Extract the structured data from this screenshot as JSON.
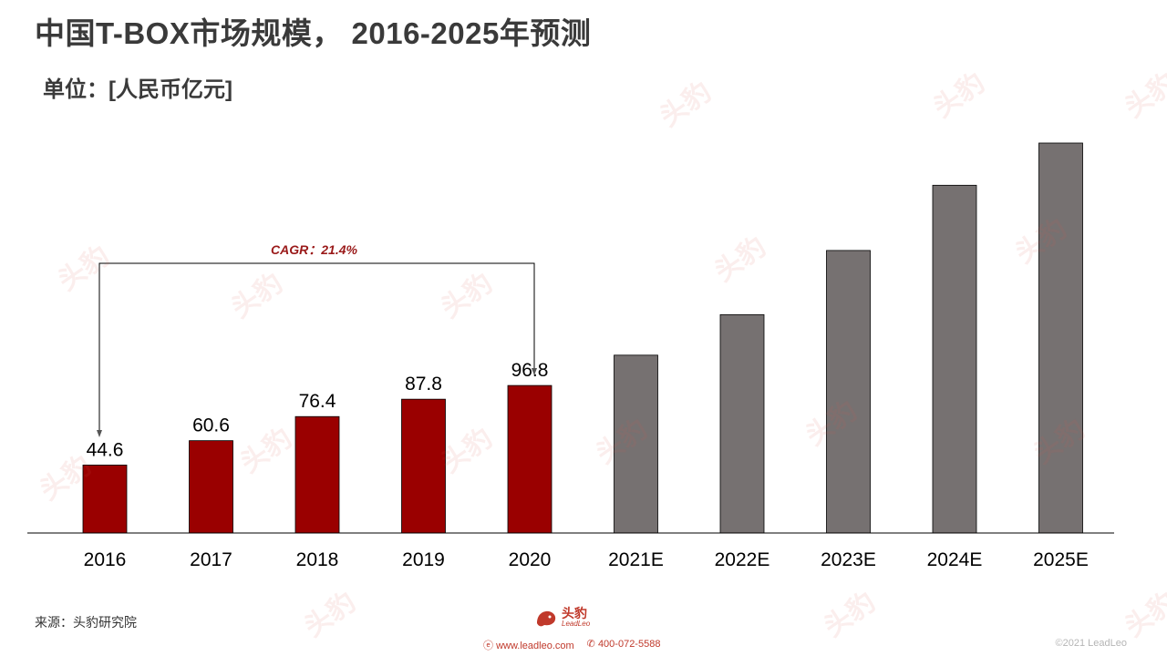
{
  "title": "中国T-BOX市场规模， 2016-2025年预测",
  "unit": "单位：[人民币亿元]",
  "source": "来源：头豹研究院",
  "brand": {
    "name": "头豹",
    "sub": "LeadLeo",
    "website": "www.leadleo.com",
    "phone": "400-072-5588",
    "copyright": "©2021 LeadLeo"
  },
  "watermark": "头豹",
  "colors": {
    "actual": "#9a0000",
    "forecast": "#767171",
    "annotation": "#9a1a1a",
    "text": "#000000"
  },
  "chart_data": {
    "type": "bar",
    "categories": [
      "2016",
      "2017",
      "2018",
      "2019",
      "2020",
      "2021E",
      "2022E",
      "2023E",
      "2024E",
      "2025E"
    ],
    "values": [
      44.6,
      60.6,
      76.4,
      87.8,
      96.8,
      116.7,
      143.3,
      185.4,
      228.2,
      255.9
    ],
    "labels": [
      "44.6",
      "60.6",
      "76.4",
      "87.8",
      "96.8",
      "",
      "",
      "",
      "",
      ""
    ],
    "forecast_from_index": 5,
    "annotation": {
      "text": "CAGR：21.4%",
      "from": "2016",
      "to": "2020"
    },
    "ylim": [
      0,
      260
    ]
  }
}
